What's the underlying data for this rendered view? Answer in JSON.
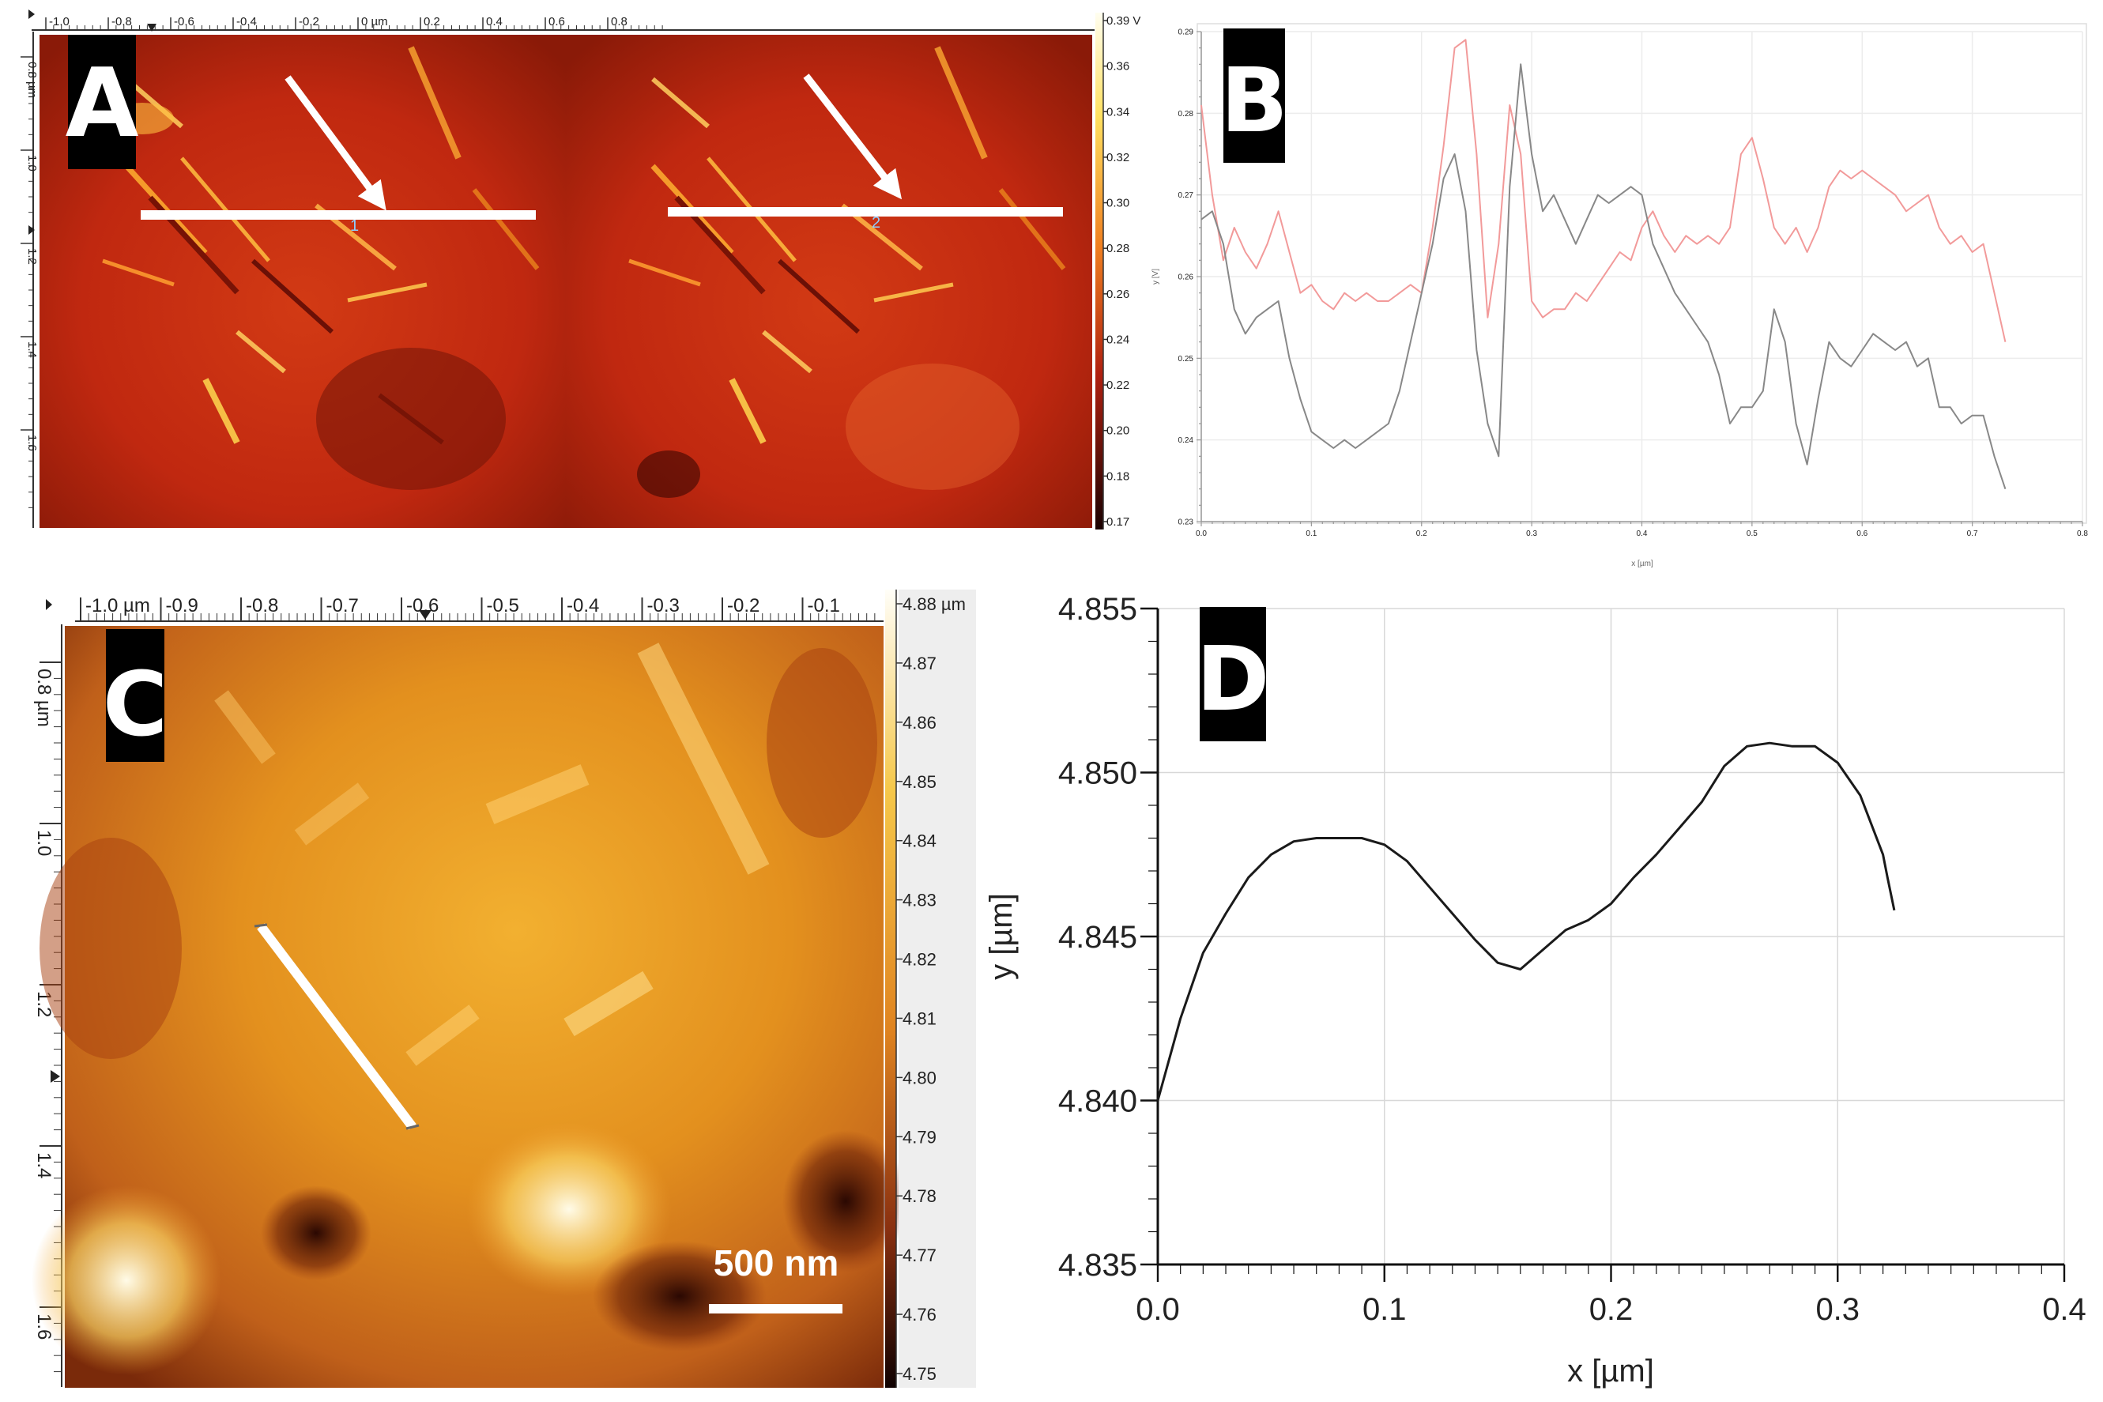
{
  "colors": {
    "afm_heat_dark": "#2a0505",
    "afm_heat_mid": "#c42a10",
    "afm_heat_bright": "#ffe060",
    "afm_height_dark": "#5a1a05",
    "afm_height_mid": "#e08a20",
    "afm_height_bright": "#fff5c8",
    "profile_black": "#1a1a1a",
    "profile_gray": "#888888",
    "profile_pink": "#f29a9a"
  },
  "panel_a": {
    "label": "A",
    "top_ticks": [
      "-1.0",
      "-0.8",
      "-0.6",
      "-0.4",
      "-0.2",
      "0 µm",
      "0.2",
      "0.4",
      "0.6",
      "0.8"
    ],
    "left_ticks": [
      "0.8 µm",
      "1.0",
      "1.2",
      "1.4",
      "1.6"
    ],
    "colorbar_ticks": [
      "0.39 V",
      "0.36",
      "0.34",
      "0.32",
      "0.30",
      "0.28",
      "0.26",
      "0.24",
      "0.22",
      "0.20",
      "0.18",
      "0.17"
    ],
    "line_marker_1": "1",
    "line_marker_2": "2"
  },
  "panel_c": {
    "label": "C",
    "top_ticks": [
      "-1.0 µm",
      "-0.9",
      "-0.8",
      "-0.7",
      "-0.6",
      "-0.5",
      "-0.4",
      "-0.3",
      "-0.2",
      "-0.1"
    ],
    "left_ticks": [
      "0.8 µm",
      "1.0",
      "1.2",
      "1.4",
      "1.6"
    ],
    "colorbar_ticks": [
      "4.88 µm",
      "4.87",
      "4.86",
      "4.85",
      "4.84",
      "4.83",
      "4.82",
      "4.81",
      "4.80",
      "4.79",
      "4.78",
      "4.77",
      "4.76",
      "4.75"
    ],
    "scale_bar": "500 nm"
  },
  "chart_data": [
    {
      "panel": "B",
      "type": "line",
      "xlabel": "x [µm]",
      "ylabel": "y [V]",
      "xlim": [
        0.0,
        0.8
      ],
      "ylim": [
        0.23,
        0.29
      ],
      "x_ticks": [
        "0.0",
        "0.1",
        "0.2",
        "0.3",
        "0.4",
        "0.5",
        "0.6",
        "0.7",
        "0.8"
      ],
      "y_ticks": [
        "0.23",
        "0.24",
        "0.25",
        "0.26",
        "0.27",
        "0.28",
        "0.29"
      ],
      "grid": true,
      "series": [
        {
          "color": "#f29a9a",
          "x": [
            0.0,
            0.01,
            0.02,
            0.03,
            0.04,
            0.05,
            0.06,
            0.07,
            0.08,
            0.09,
            0.1,
            0.11,
            0.12,
            0.13,
            0.14,
            0.15,
            0.16,
            0.17,
            0.18,
            0.19,
            0.2,
            0.21,
            0.22,
            0.23,
            0.24,
            0.25,
            0.26,
            0.27,
            0.28,
            0.29,
            0.3,
            0.31,
            0.32,
            0.33,
            0.34,
            0.35,
            0.36,
            0.37,
            0.38,
            0.39,
            0.4,
            0.41,
            0.42,
            0.43,
            0.44,
            0.45,
            0.46,
            0.47,
            0.48,
            0.49,
            0.5,
            0.51,
            0.52,
            0.53,
            0.54,
            0.55,
            0.56,
            0.57,
            0.58,
            0.59,
            0.6,
            0.61,
            0.62,
            0.63,
            0.64,
            0.65,
            0.66,
            0.67,
            0.68,
            0.69,
            0.7,
            0.71,
            0.72,
            0.73
          ],
          "y": [
            0.281,
            0.27,
            0.262,
            0.266,
            0.263,
            0.261,
            0.264,
            0.268,
            0.263,
            0.258,
            0.259,
            0.257,
            0.256,
            0.258,
            0.257,
            0.258,
            0.257,
            0.257,
            0.258,
            0.259,
            0.258,
            0.266,
            0.276,
            0.288,
            0.289,
            0.275,
            0.255,
            0.264,
            0.281,
            0.275,
            0.257,
            0.255,
            0.256,
            0.256,
            0.258,
            0.257,
            0.259,
            0.261,
            0.263,
            0.262,
            0.266,
            0.268,
            0.265,
            0.263,
            0.265,
            0.264,
            0.265,
            0.264,
            0.266,
            0.275,
            0.277,
            0.272,
            0.266,
            0.264,
            0.266,
            0.263,
            0.266,
            0.271,
            0.273,
            0.272,
            0.273,
            0.272,
            0.271,
            0.27,
            0.268,
            0.269,
            0.27,
            0.266,
            0.264,
            0.265,
            0.263,
            0.264,
            0.258,
            0.252
          ]
        },
        {
          "color": "#888888",
          "x": [
            0.0,
            0.01,
            0.02,
            0.03,
            0.04,
            0.05,
            0.06,
            0.07,
            0.08,
            0.09,
            0.1,
            0.11,
            0.12,
            0.13,
            0.14,
            0.15,
            0.16,
            0.17,
            0.18,
            0.19,
            0.2,
            0.21,
            0.22,
            0.23,
            0.24,
            0.25,
            0.26,
            0.27,
            0.28,
            0.29,
            0.3,
            0.31,
            0.32,
            0.33,
            0.34,
            0.35,
            0.36,
            0.37,
            0.38,
            0.39,
            0.4,
            0.41,
            0.42,
            0.43,
            0.44,
            0.45,
            0.46,
            0.47,
            0.48,
            0.49,
            0.5,
            0.51,
            0.52,
            0.53,
            0.54,
            0.55,
            0.56,
            0.57,
            0.58,
            0.59,
            0.6,
            0.61,
            0.62,
            0.63,
            0.64,
            0.65,
            0.66,
            0.67,
            0.68,
            0.69,
            0.7,
            0.71,
            0.72,
            0.73
          ],
          "y": [
            0.267,
            0.268,
            0.264,
            0.256,
            0.253,
            0.255,
            0.256,
            0.257,
            0.25,
            0.245,
            0.241,
            0.24,
            0.239,
            0.24,
            0.239,
            0.24,
            0.241,
            0.242,
            0.246,
            0.252,
            0.258,
            0.264,
            0.272,
            0.275,
            0.268,
            0.251,
            0.242,
            0.238,
            0.271,
            0.286,
            0.275,
            0.268,
            0.27,
            0.267,
            0.264,
            0.267,
            0.27,
            0.269,
            0.27,
            0.271,
            0.27,
            0.264,
            0.261,
            0.258,
            0.256,
            0.254,
            0.252,
            0.248,
            0.242,
            0.244,
            0.244,
            0.246,
            0.256,
            0.252,
            0.242,
            0.237,
            0.245,
            0.252,
            0.25,
            0.249,
            0.251,
            0.253,
            0.252,
            0.251,
            0.252,
            0.249,
            0.25,
            0.244,
            0.244,
            0.242,
            0.243,
            0.243,
            0.238,
            0.234
          ]
        }
      ]
    },
    {
      "panel": "D",
      "type": "line",
      "xlabel": "x [µm]",
      "ylabel": "y [µm]",
      "xlim": [
        0.0,
        0.4
      ],
      "ylim": [
        4.835,
        4.855
      ],
      "x_ticks": [
        "0.0",
        "0.1",
        "0.2",
        "0.3",
        "0.4"
      ],
      "y_ticks": [
        "4.835",
        "4.840",
        "4.845",
        "4.850",
        "4.855"
      ],
      "grid": true,
      "series": [
        {
          "color": "#1a1a1a",
          "x": [
            0.0,
            0.01,
            0.02,
            0.03,
            0.04,
            0.05,
            0.06,
            0.07,
            0.08,
            0.09,
            0.1,
            0.11,
            0.12,
            0.13,
            0.14,
            0.15,
            0.16,
            0.17,
            0.18,
            0.19,
            0.2,
            0.21,
            0.22,
            0.23,
            0.24,
            0.25,
            0.26,
            0.27,
            0.28,
            0.29,
            0.3,
            0.31,
            0.32,
            0.322,
            0.325
          ],
          "y": [
            4.84,
            4.8425,
            4.8445,
            4.8457,
            4.8468,
            4.8475,
            4.8479,
            4.848,
            4.848,
            4.848,
            4.8478,
            4.8473,
            4.8465,
            4.8457,
            4.8449,
            4.8442,
            4.844,
            4.8446,
            4.8452,
            4.8455,
            4.846,
            4.8468,
            4.8475,
            4.8483,
            4.8491,
            4.8502,
            4.8508,
            4.8509,
            4.8508,
            4.8508,
            4.8503,
            4.8493,
            4.8475,
            4.8468,
            4.8458
          ]
        }
      ]
    }
  ]
}
